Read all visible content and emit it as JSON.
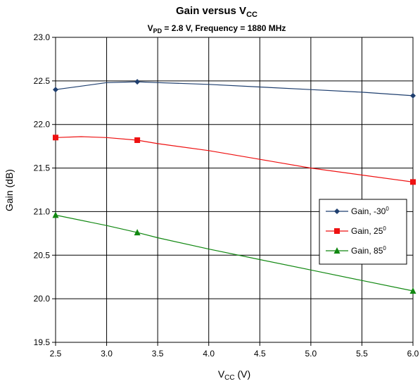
{
  "chart_data": {
    "type": "line",
    "title": {
      "main": "Gain versus V",
      "sub": "CC"
    },
    "subtitle": {
      "a": "V",
      "a_sub": "PD",
      "b": " = 2.8 V, Frequency = 1880 MHz"
    },
    "xlabel": {
      "main": "V",
      "sub": "CC",
      "rest": " (V)"
    },
    "ylabel": "Gain (dB)",
    "xlim": [
      2.5,
      6.0
    ],
    "ylim": [
      19.5,
      23.0
    ],
    "x_ticks": [
      "2.5",
      "3.0",
      "3.5",
      "4.0",
      "4.5",
      "5.0",
      "5.5",
      "6.0"
    ],
    "y_ticks": [
      "19.5",
      "20.0",
      "20.5",
      "21.0",
      "21.5",
      "22.0",
      "22.5",
      "23.0"
    ],
    "grid": true,
    "legend_position": "right",
    "series": [
      {
        "name": "Gain, -30",
        "name_sup": "0",
        "color": "#1f3f6f",
        "marker": "diamond",
        "line": [
          [
            2.5,
            22.4
          ],
          [
            2.75,
            22.44
          ],
          [
            3.0,
            22.48
          ],
          [
            3.3,
            22.49
          ],
          [
            3.5,
            22.48
          ],
          [
            4.0,
            22.46
          ],
          [
            4.5,
            22.43
          ],
          [
            5.0,
            22.4
          ],
          [
            5.5,
            22.37
          ],
          [
            6.0,
            22.33
          ]
        ],
        "markers": [
          [
            2.5,
            22.4
          ],
          [
            3.3,
            22.49
          ],
          [
            6.0,
            22.33
          ]
        ]
      },
      {
        "name": "Gain, 25",
        "name_sup": "0",
        "color": "#ee1111",
        "marker": "square",
        "line": [
          [
            2.5,
            21.85
          ],
          [
            2.75,
            21.86
          ],
          [
            3.0,
            21.85
          ],
          [
            3.3,
            21.82
          ],
          [
            3.5,
            21.78
          ],
          [
            4.0,
            21.7
          ],
          [
            4.5,
            21.6
          ],
          [
            5.0,
            21.5
          ],
          [
            5.5,
            21.42
          ],
          [
            6.0,
            21.34
          ]
        ],
        "markers": [
          [
            2.5,
            21.85
          ],
          [
            3.3,
            21.82
          ],
          [
            6.0,
            21.34
          ]
        ]
      },
      {
        "name": "Gain, 85",
        "name_sup": "0",
        "color": "#118811",
        "marker": "triangle",
        "line": [
          [
            2.5,
            20.96
          ],
          [
            3.0,
            20.84
          ],
          [
            3.3,
            20.76
          ],
          [
            3.5,
            20.7
          ],
          [
            4.0,
            20.57
          ],
          [
            4.5,
            20.45
          ],
          [
            5.0,
            20.33
          ],
          [
            5.5,
            20.21
          ],
          [
            6.0,
            20.09
          ]
        ],
        "markers": [
          [
            2.5,
            20.96
          ],
          [
            3.3,
            20.76
          ],
          [
            6.0,
            20.09
          ]
        ]
      }
    ]
  }
}
